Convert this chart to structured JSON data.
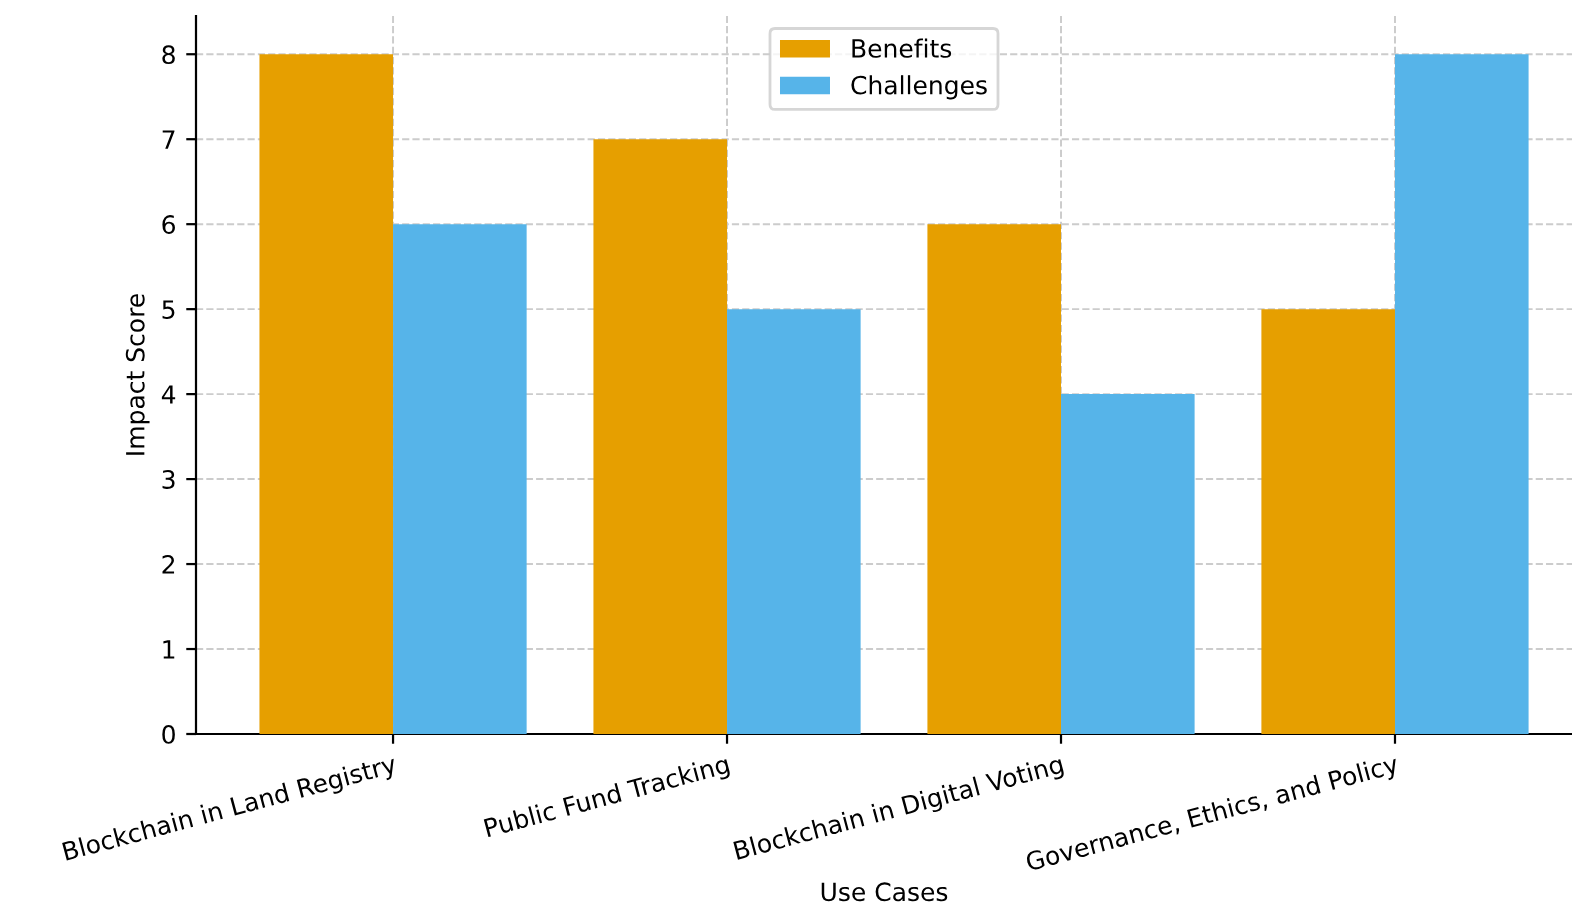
{
  "chart_data": {
    "type": "bar",
    "xlabel": "Use Cases",
    "ylabel": "Impact Score",
    "categories": [
      "Blockchain in Land Registry",
      "Public Fund Tracking",
      "Blockchain in Digital Voting",
      "Governance, Ethics, and Policy"
    ],
    "series": [
      {
        "name": "Benefits",
        "color": "#e69f00",
        "values": [
          8,
          7,
          6,
          5
        ]
      },
      {
        "name": "Challenges",
        "color": "#56b4e9",
        "values": [
          6,
          5,
          4,
          8
        ]
      }
    ],
    "ylim": [
      0,
      8.45
    ],
    "yticks": [
      0,
      1,
      2,
      3,
      4,
      5,
      6,
      7,
      8
    ],
    "grid": true,
    "legend": "top"
  }
}
